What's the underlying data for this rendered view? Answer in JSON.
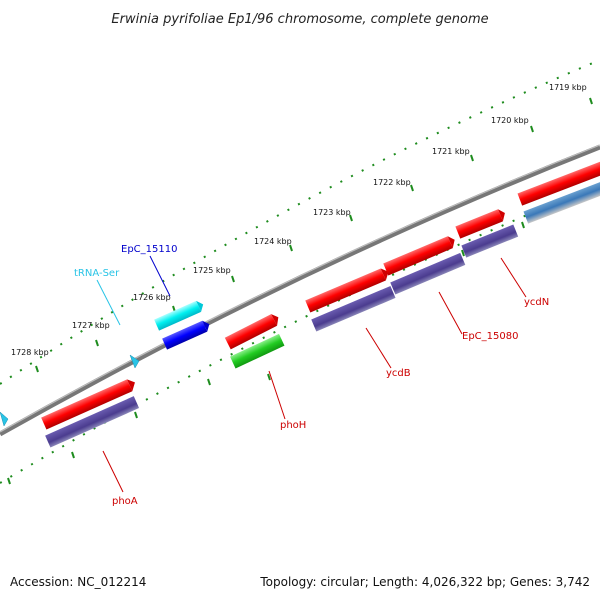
{
  "title": "Erwinia pyrifoliae Ep1/96 chromosome, complete genome",
  "accession": "Accession: NC_012214",
  "topology": "Topology: circular; Length: 4,026,322 bp; Genes: 3,742",
  "colors": {
    "backbone": "#7a7a7a",
    "tick_dots": "#1e8c1e",
    "forward_cds": "#ff0000",
    "reverse_cds": "#4b3c8f",
    "trna": "#29c4e6",
    "label_red": "#cc0000",
    "label_blue": "#0000cc",
    "label_cyan": "#29c4e6"
  },
  "ticks": [
    {
      "label": "1719 kbp"
    },
    {
      "label": "1720 kbp"
    },
    {
      "label": "1721 kbp"
    },
    {
      "label": "1722 kbp"
    },
    {
      "label": "1723 kbp"
    },
    {
      "label": "1724 kbp"
    },
    {
      "label": "1725 kbp"
    },
    {
      "label": "1726 kbp"
    },
    {
      "label": "1727 kbp"
    },
    {
      "label": "1728 kbp"
    }
  ],
  "genes": {
    "ycdN": "ycdN",
    "EpC_15080": "EpC_15080",
    "ycdB": "ycdB",
    "phoH": "phoH",
    "phoA": "phoA",
    "EpC_15110": "EpC_15110",
    "tRNA_Ser": "tRNA-Ser"
  }
}
